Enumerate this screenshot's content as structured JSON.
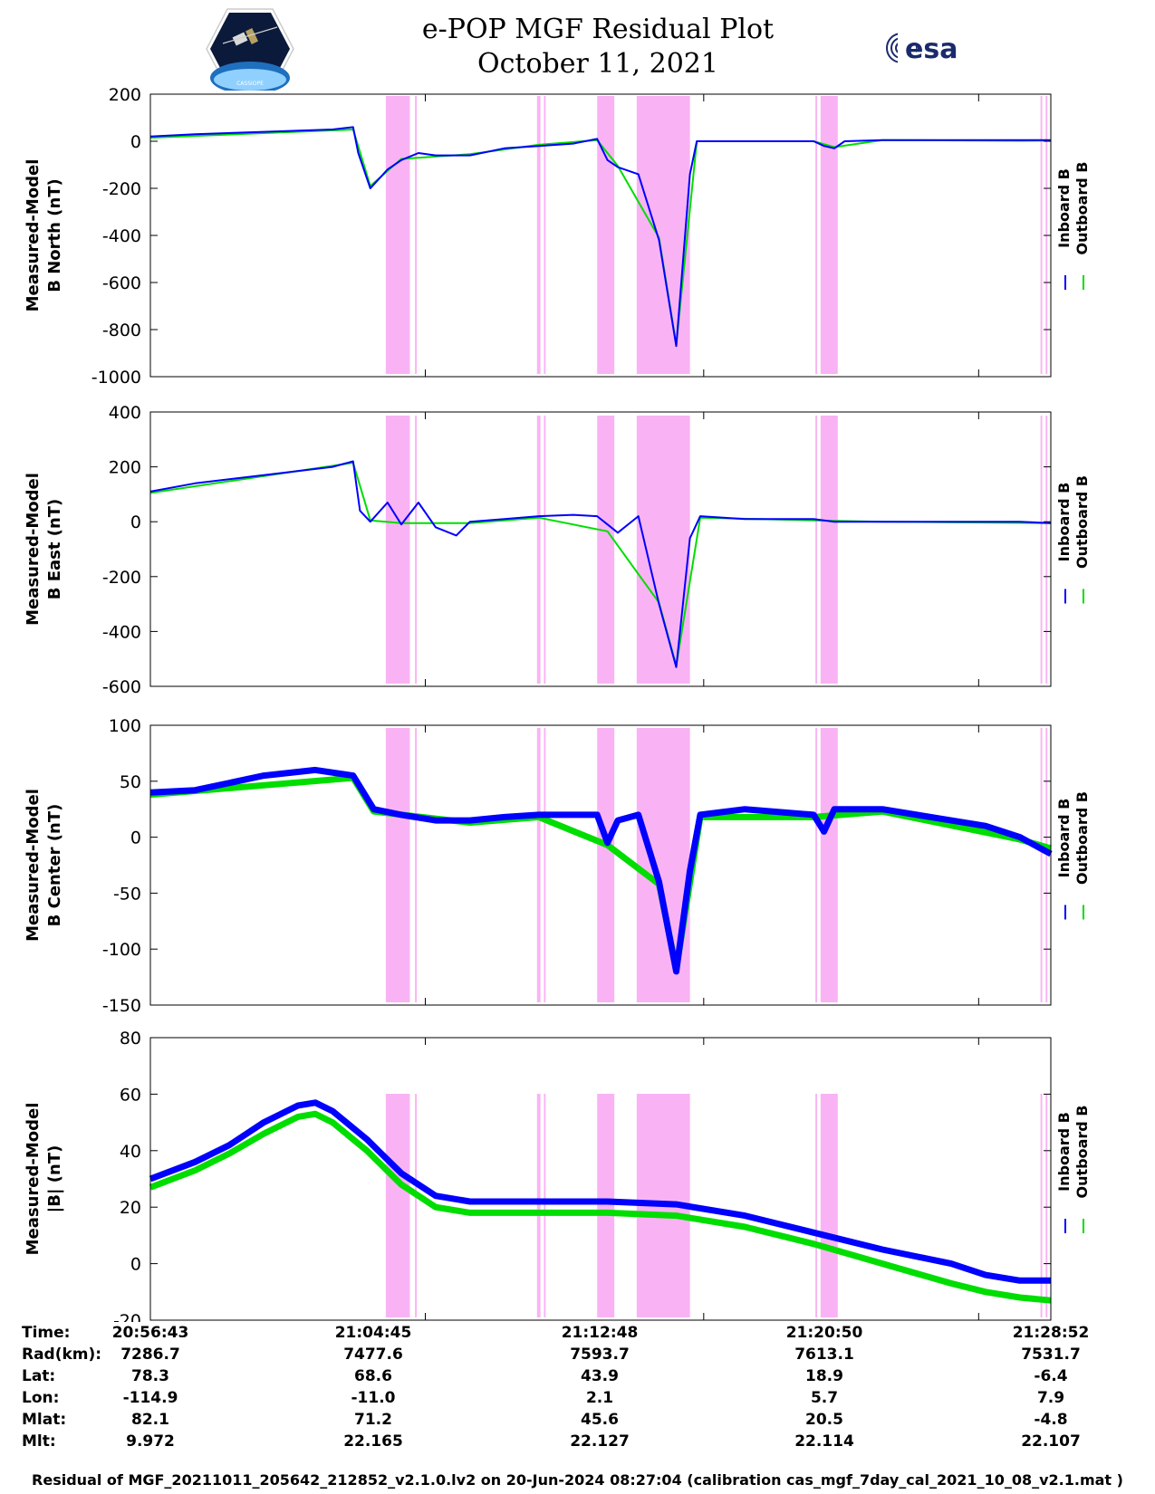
{
  "header": {
    "title": "e-POP MGF Residual Plot",
    "date": "October 11, 2021",
    "esa_logo_text": "esa",
    "cassiope_logo_text": "CASSIOPE"
  },
  "colors": {
    "inboard": "#0000ff",
    "outboard": "#00dd00",
    "shading": "#f9b3f4"
  },
  "shaded_intervals": [
    [
      9.55,
      10.25
    ],
    [
      10.4,
      10.45
    ],
    [
      13.95,
      14.05
    ],
    [
      14.15,
      14.2
    ],
    [
      15.7,
      16.2
    ],
    [
      16.85,
      18.4
    ],
    [
      22.05,
      22.1
    ],
    [
      22.2,
      22.7
    ],
    [
      28.6,
      28.65
    ],
    [
      28.75,
      28.8
    ]
  ],
  "chart_data": [
    {
      "type": "line",
      "title": "",
      "ylabel": [
        "Measured-Model",
        "B North (nT)"
      ],
      "ylim": [
        -1000,
        200
      ],
      "yticks": [
        200,
        0,
        -200,
        -400,
        -600,
        -800,
        -1000
      ],
      "xlim": [
        2.7,
        28.9
      ],
      "legend": [
        "Inboard B",
        "Outboard B"
      ],
      "legend_placement": "right",
      "series": [
        {
          "name": "Inboard B",
          "x": [
            2.7,
            4,
            6,
            8,
            8.6,
            8.75,
            9.1,
            9.6,
            10,
            10.5,
            11,
            12,
            13,
            14,
            15,
            15.7,
            16,
            16.3,
            16.9,
            17.5,
            18.0,
            18.4,
            18.6,
            20,
            22,
            22.3,
            22.6,
            22.9,
            24,
            26,
            28,
            28.9
          ],
          "y": [
            20,
            30,
            40,
            50,
            60,
            -50,
            -200,
            -120,
            -80,
            -50,
            -60,
            -60,
            -30,
            -20,
            -10,
            10,
            -80,
            -110,
            -140,
            -420,
            -870,
            -140,
            0,
            0,
            0,
            -20,
            -30,
            0,
            5,
            5,
            5,
            5
          ]
        },
        {
          "name": "Outboard B",
          "x": [
            2.7,
            8.6,
            9.1,
            10,
            12,
            14,
            15.7,
            16.3,
            17.5,
            18.0,
            18.6,
            22,
            22.6,
            24,
            28,
            28.9
          ],
          "y": [
            15,
            50,
            -190,
            -75,
            -55,
            -15,
            5,
            -105,
            -410,
            -865,
            0,
            0,
            -25,
            5,
            2,
            3
          ]
        }
      ]
    },
    {
      "type": "line",
      "title": "",
      "ylabel": [
        "Measured-Model",
        "B East (nT)"
      ],
      "ylim": [
        -600,
        400
      ],
      "yticks": [
        400,
        200,
        0,
        -200,
        -400,
        -600
      ],
      "xlim": [
        2.7,
        28.9
      ],
      "legend": [
        "Inboard B",
        "Outboard B"
      ],
      "legend_placement": "right",
      "series": [
        {
          "name": "Inboard B",
          "x": [
            2.7,
            4,
            6,
            8,
            8.6,
            8.8,
            9.1,
            9.6,
            10,
            10.5,
            11,
            11.6,
            12,
            13,
            14,
            15,
            15.7,
            16,
            16.3,
            16.9,
            17.5,
            18.0,
            18.4,
            18.7,
            20,
            22,
            22.3,
            22.6,
            24,
            26,
            28,
            28.9
          ],
          "y": [
            110,
            140,
            170,
            200,
            220,
            40,
            0,
            70,
            -10,
            70,
            -20,
            -50,
            0,
            10,
            20,
            25,
            20,
            -10,
            -40,
            20,
            -300,
            -530,
            -60,
            20,
            10,
            10,
            5,
            0,
            0,
            0,
            0,
            -5
          ]
        },
        {
          "name": "Outboard B",
          "x": [
            2.7,
            8.6,
            9.1,
            10,
            12,
            14,
            16,
            17.5,
            18.0,
            18.7,
            22,
            24,
            28.9
          ],
          "y": [
            105,
            215,
            5,
            -5,
            -5,
            15,
            -35,
            -295,
            -525,
            15,
            5,
            0,
            -5
          ]
        }
      ]
    },
    {
      "type": "line",
      "title": "",
      "ylabel": [
        "Measured-Model",
        "B Center (nT)"
      ],
      "ylim": [
        -150,
        100
      ],
      "yticks": [
        100,
        50,
        0,
        -50,
        -100,
        -150
      ],
      "xlim": [
        2.7,
        28.9
      ],
      "legend": [
        "Inboard B",
        "Outboard B"
      ],
      "legend_placement": "right",
      "series": [
        {
          "name": "Inboard B",
          "x": [
            2.7,
            4,
            6,
            7.5,
            8.6,
            9.2,
            10,
            11,
            12,
            13,
            14,
            15,
            15.7,
            16,
            16.3,
            16.9,
            17.5,
            18.0,
            18.4,
            18.7,
            20,
            22,
            22.3,
            22.6,
            24,
            26,
            27,
            28,
            28.9
          ],
          "y": [
            40,
            42,
            55,
            60,
            55,
            25,
            20,
            15,
            15,
            18,
            20,
            20,
            20,
            -5,
            15,
            20,
            -40,
            -120,
            -30,
            20,
            25,
            20,
            5,
            25,
            25,
            15,
            10,
            0,
            -15
          ]
        },
        {
          "name": "Outboard B",
          "x": [
            2.7,
            8.6,
            9.2,
            12,
            14,
            16.0,
            17.5,
            18.0,
            18.7,
            22,
            24,
            28,
            28.9
          ],
          "y": [
            38,
            53,
            23,
            13,
            18,
            -7,
            -42,
            -118,
            18,
            18,
            23,
            -2,
            -10
          ]
        }
      ]
    },
    {
      "type": "line",
      "title": "",
      "ylabel": [
        "Measured-Model",
        "|B| (nT)"
      ],
      "ylim": [
        -20,
        80
      ],
      "yticks": [
        80,
        60,
        40,
        20,
        0,
        -20
      ],
      "xlim": [
        2.7,
        28.9
      ],
      "legend": [
        "Inboard B",
        "Outboard B"
      ],
      "legend_placement": "right",
      "series": [
        {
          "name": "Inboard B",
          "x": [
            2.7,
            4,
            5,
            6,
            7,
            7.5,
            8,
            9,
            10,
            11,
            12,
            14,
            16,
            18,
            20,
            22,
            24,
            26,
            27,
            28,
            28.9
          ],
          "y": [
            30,
            36,
            42,
            50,
            56,
            57,
            54,
            44,
            32,
            24,
            22,
            22,
            22,
            21,
            17,
            11,
            5,
            0,
            -4,
            -6,
            -6
          ]
        },
        {
          "name": "Outboard B",
          "x": [
            2.7,
            4,
            5,
            6,
            7,
            7.5,
            8,
            9,
            10,
            11,
            12,
            14,
            16,
            18,
            20,
            22,
            24,
            26,
            27,
            28,
            28.9
          ],
          "y": [
            27,
            33,
            39,
            46,
            52,
            53,
            50,
            40,
            28,
            20,
            18,
            18,
            18,
            17,
            13,
            7,
            0,
            -7,
            -10,
            -12,
            -13
          ]
        }
      ]
    }
  ],
  "ephemeris": {
    "labels": [
      "Time:",
      "Rad(km):",
      "Lat:",
      "Lon:",
      "Mlat:",
      "Mlt:"
    ],
    "columns": [
      [
        "20:56:43",
        "7286.7",
        "78.3",
        "-114.9",
        "82.1",
        "9.972"
      ],
      [
        "21:04:45",
        "7477.6",
        "68.6",
        "-11.0",
        "71.2",
        "22.165"
      ],
      [
        "21:12:48",
        "7593.7",
        "43.9",
        "2.1",
        "45.6",
        "22.127"
      ],
      [
        "21:20:50",
        "7613.1",
        "18.9",
        "5.7",
        "20.5",
        "22.114"
      ],
      [
        "21:28:52",
        "7531.7",
        "-6.4",
        "7.9",
        "-4.8",
        "22.107"
      ]
    ]
  },
  "footer": "Residual of MGF_20211011_205642_212852_v2.1.0.lv2 on 20-Jun-2024 08:27:04 (calibration cas_mgf_7day_cal_2021_10_08_v2.1.mat )"
}
